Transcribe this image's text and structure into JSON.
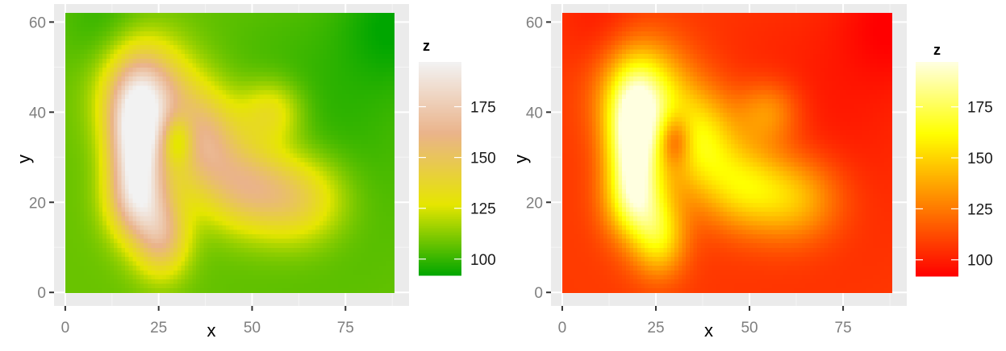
{
  "chart_data": [
    {
      "type": "heatmap",
      "title": "",
      "xlabel": "x",
      "ylabel": "y",
      "xlim": [
        -3,
        92
      ],
      "ylim": [
        -3,
        64
      ],
      "x_range": [
        0,
        88
      ],
      "y_range": [
        0,
        62
      ],
      "x_ticks": [
        0,
        25,
        50,
        75
      ],
      "x_tick_labels": [
        "0",
        "25",
        "50",
        "75"
      ],
      "y_ticks": [
        0,
        20,
        40,
        60
      ],
      "y_tick_labels": [
        "0",
        "20",
        "40",
        "60"
      ],
      "grid": true,
      "z_range": [
        92,
        197
      ],
      "legend": {
        "title": "z",
        "position": "right",
        "ticks": [
          100,
          125,
          150,
          175
        ],
        "tick_labels": [
          "100",
          "125",
          "150",
          "175"
        ],
        "colors": [
          "#00a600",
          "#e6e600",
          "#eab38a",
          "#f2f2f2"
        ],
        "colors_note": "terrain colors"
      },
      "surface": {
        "base": 108,
        "peaks": [
          {
            "x": 19,
            "y": 32,
            "amplitude": 85,
            "sx": 5,
            "sy": 10
          },
          {
            "x": 22,
            "y": 44,
            "amplitude": 60,
            "sx": 8,
            "sy": 8
          },
          {
            "x": 37,
            "y": 34,
            "amplitude": 50,
            "sx": 7,
            "sy": 8
          },
          {
            "x": 48,
            "y": 24,
            "amplitude": 42,
            "sx": 8,
            "sy": 7
          },
          {
            "x": 62,
            "y": 21,
            "amplitude": 40,
            "sx": 9,
            "sy": 7
          },
          {
            "x": 55,
            "y": 40,
            "amplitude": 30,
            "sx": 6,
            "sy": 5
          },
          {
            "x": 26,
            "y": 12,
            "amplitude": 45,
            "sx": 5,
            "sy": 6
          },
          {
            "x": 20,
            "y": 20,
            "amplitude": 40,
            "sx": 6,
            "sy": 6
          },
          {
            "x": 66,
            "y": 35,
            "amplitude": -10,
            "sx": 20,
            "sy": 20
          },
          {
            "x": 88,
            "y": 60,
            "amplitude": -14,
            "sx": 10,
            "sy": 10
          },
          {
            "x": 10,
            "y": 60,
            "amplitude": -8,
            "sx": 8,
            "sy": 8
          }
        ],
        "dips": [
          {
            "x": 30,
            "y": 34,
            "amplitude": -35,
            "sx": 3,
            "sy": 4
          }
        ]
      }
    },
    {
      "type": "heatmap",
      "title": "",
      "xlabel": "x",
      "ylabel": "y",
      "xlim": [
        -3,
        92
      ],
      "ylim": [
        -3,
        64
      ],
      "x_range": [
        0,
        88
      ],
      "y_range": [
        0,
        62
      ],
      "x_ticks": [
        0,
        25,
        50,
        75
      ],
      "x_tick_labels": [
        "0",
        "25",
        "50",
        "75"
      ],
      "y_ticks": [
        0,
        20,
        40,
        60
      ],
      "y_tick_labels": [
        "0",
        "20",
        "40",
        "60"
      ],
      "grid": true,
      "z_range": [
        92,
        197
      ],
      "legend": {
        "title": "z",
        "position": "right",
        "ticks": [
          100,
          125,
          150,
          175
        ],
        "tick_labels": [
          "100",
          "125",
          "150",
          "175"
        ],
        "colors": [
          "#ff0000",
          "#ff8000",
          "#ffff00",
          "#ffffe0"
        ],
        "colors_note": "heat colors"
      },
      "surface_same_as_chart": 0
    }
  ]
}
